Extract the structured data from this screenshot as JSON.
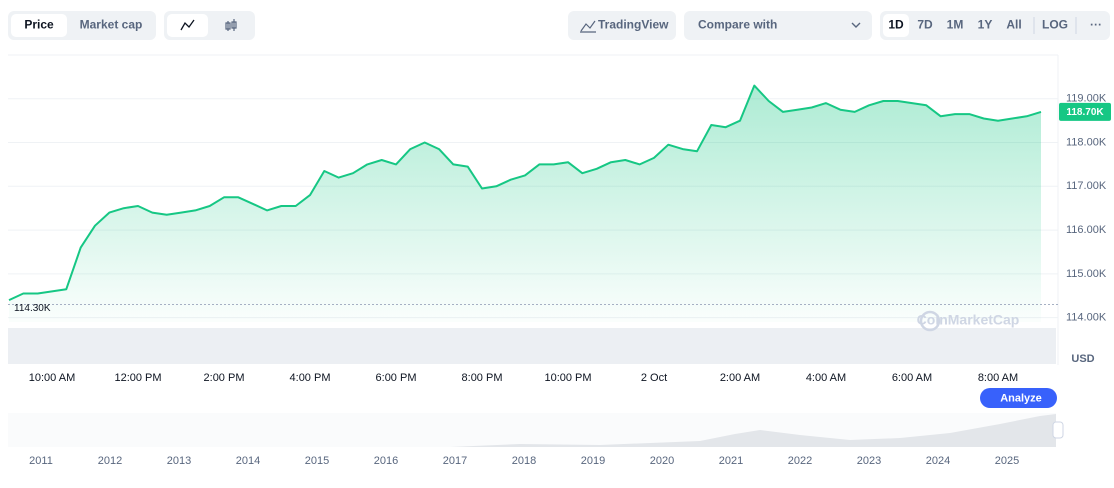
{
  "ui": {
    "tabs": [
      "Price",
      "Market cap"
    ],
    "tradingview": "TradingView",
    "compare": "Compare with",
    "ranges": [
      "1D",
      "7D",
      "1M",
      "1Y",
      "All",
      "LOG"
    ],
    "more": "···",
    "currency": "USD",
    "watermark": "CoinMarketCap",
    "analyze": "Analyze"
  },
  "chart_data": {
    "type": "line",
    "color": "#16c784",
    "categories": [
      null,
      null,
      null,
      "10:00 AM",
      null,
      null,
      null,
      null,
      null,
      "12:00 PM",
      null,
      null,
      null,
      null,
      null,
      "2:00 PM",
      null,
      null,
      null,
      null,
      null,
      "4:00 PM",
      null,
      null,
      null,
      null,
      null,
      "6:00 PM",
      null,
      null,
      null,
      null,
      null,
      "8:00 PM",
      null,
      null,
      null,
      null,
      null,
      "10:00 PM",
      null,
      null,
      null,
      null,
      null,
      "2 Oct",
      null,
      null,
      null,
      null,
      null,
      "2:00 AM",
      null,
      null,
      null,
      null,
      null,
      "4:00 AM",
      null,
      null,
      null,
      null,
      null,
      "6:00 AM",
      null,
      null,
      null,
      null,
      null,
      "8:00 AM",
      null,
      null,
      null
    ],
    "values": [
      114400,
      114550,
      114550,
      114600,
      114650,
      115600,
      116100,
      116400,
      116500,
      116550,
      116400,
      116350,
      116400,
      116450,
      116550,
      116750,
      116750,
      116600,
      116450,
      116550,
      116550,
      116800,
      117350,
      117200,
      117300,
      117500,
      117600,
      117500,
      117850,
      118000,
      117850,
      117500,
      117450,
      116950,
      117000,
      117150,
      117250,
      117500,
      117500,
      117550,
      117300,
      117400,
      117550,
      117600,
      117500,
      117650,
      117950,
      117850,
      117800,
      118400,
      118350,
      118500,
      119300,
      118950,
      118700,
      118750,
      118800,
      118900,
      118750,
      118700,
      118850,
      118950,
      118950,
      118900,
      118850,
      118600,
      118650,
      118650,
      118550,
      118500,
      118550,
      118600,
      118700
    ],
    "ylim": [
      113900,
      120000
    ],
    "yticks": [
      {
        "value": 114000,
        "label": "114.00K"
      },
      {
        "value": 115000,
        "label": "115.00K"
      },
      {
        "value": 116000,
        "label": "116.00K"
      },
      {
        "value": 117000,
        "label": "117.00K"
      },
      {
        "value": 118000,
        "label": "118.00K"
      },
      {
        "value": 119000,
        "label": "119.00K"
      }
    ],
    "grid": true,
    "current_price": {
      "value": 118700,
      "label": "118.70K"
    },
    "reference_line": {
      "value": 114300,
      "label": "114.30K"
    }
  },
  "navigator": {
    "years": [
      "2011",
      "2012",
      "2013",
      "2014",
      "2015",
      "2016",
      "2017",
      "2018",
      "2019",
      "2020",
      "2021",
      "2022",
      "2023",
      "2024",
      "2025"
    ]
  }
}
